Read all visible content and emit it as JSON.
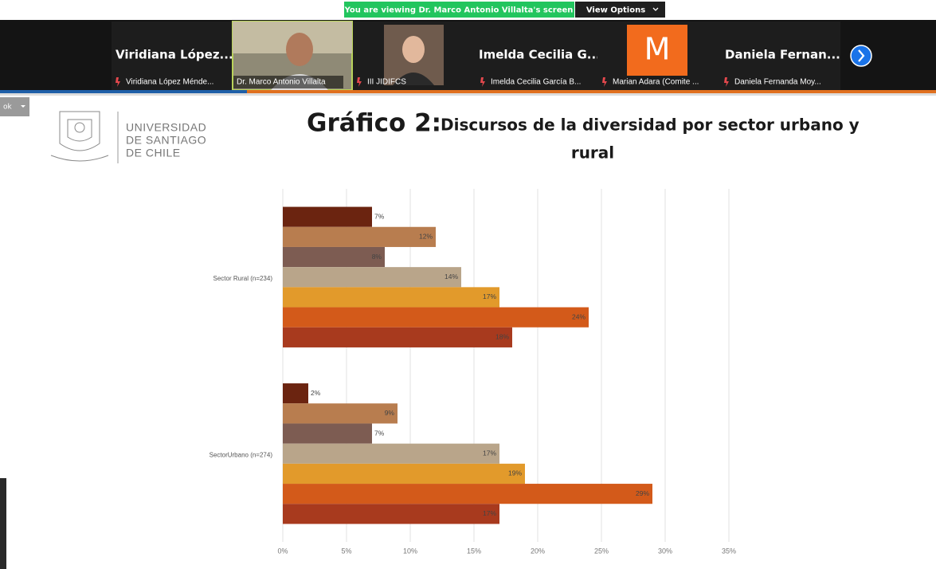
{
  "banner": {
    "text": "You are viewing Dr. Marco Antonio Villalta's screen",
    "button": "View Options"
  },
  "participants": [
    {
      "name": "Viridiana López...",
      "label": "Viridiana López Ménde..."
    },
    {
      "label": "Dr. Marco Antonio Villalta"
    },
    {
      "label": "III JIDIFCS"
    },
    {
      "name": "Imelda Cecilia G...",
      "label": "Imelda Cecilia García B..."
    },
    {
      "initial": "M",
      "label": "Marian Adara (Comite ..."
    },
    {
      "name": "Daniela Fernan...",
      "label": "Daniela Fernanda Moy..."
    }
  ],
  "slide": {
    "menu": "ok",
    "logo_text": [
      "UNIVERSIDAD",
      "DE SANTIAGO",
      "DE CHILE"
    ],
    "title_lead": "Gráfico 2:",
    "title": [
      "Discursos de la diversidad por sector urbano y",
      "rural"
    ]
  },
  "chart_data": {
    "type": "grouped_hbar",
    "categories": [
      "Sector Rural (n=234)",
      "SectorUrbano (n=274)"
    ],
    "series": [
      {
        "color": "#6b2410",
        "values": [
          7,
          2
        ],
        "value_labels": [
          "7%",
          "2%"
        ]
      },
      {
        "color": "#b87d4f",
        "values": [
          12,
          9
        ],
        "value_labels": [
          "12%",
          "9%"
        ]
      },
      {
        "color": "#7d5c52",
        "values": [
          8,
          7
        ],
        "value_labels": [
          "8%",
          "7%"
        ]
      },
      {
        "color": "#b9a58a",
        "values": [
          14,
          17
        ],
        "value_labels": [
          "14%",
          "17%"
        ]
      },
      {
        "color": "#e29a2b",
        "values": [
          17,
          19
        ],
        "value_labels": [
          "17%",
          "19%"
        ]
      },
      {
        "color": "#d35a1a",
        "values": [
          24,
          29
        ],
        "value_labels": [
          "24%",
          "29%"
        ]
      },
      {
        "color": "#a83a1e",
        "values": [
          18,
          17
        ],
        "value_labels": [
          "18%",
          "17%"
        ]
      }
    ],
    "xlim": [
      0,
      35
    ],
    "xticks": [
      {
        "value": 0,
        "label": "0%"
      },
      {
        "value": 5,
        "label": "5%"
      },
      {
        "value": 10,
        "label": "10%"
      },
      {
        "value": 15,
        "label": "15%"
      },
      {
        "value": 20,
        "label": "20%"
      },
      {
        "value": 25,
        "label": "25%"
      },
      {
        "value": 30,
        "label": "30%"
      },
      {
        "value": 35,
        "label": "35%"
      }
    ],
    "grid": true
  }
}
